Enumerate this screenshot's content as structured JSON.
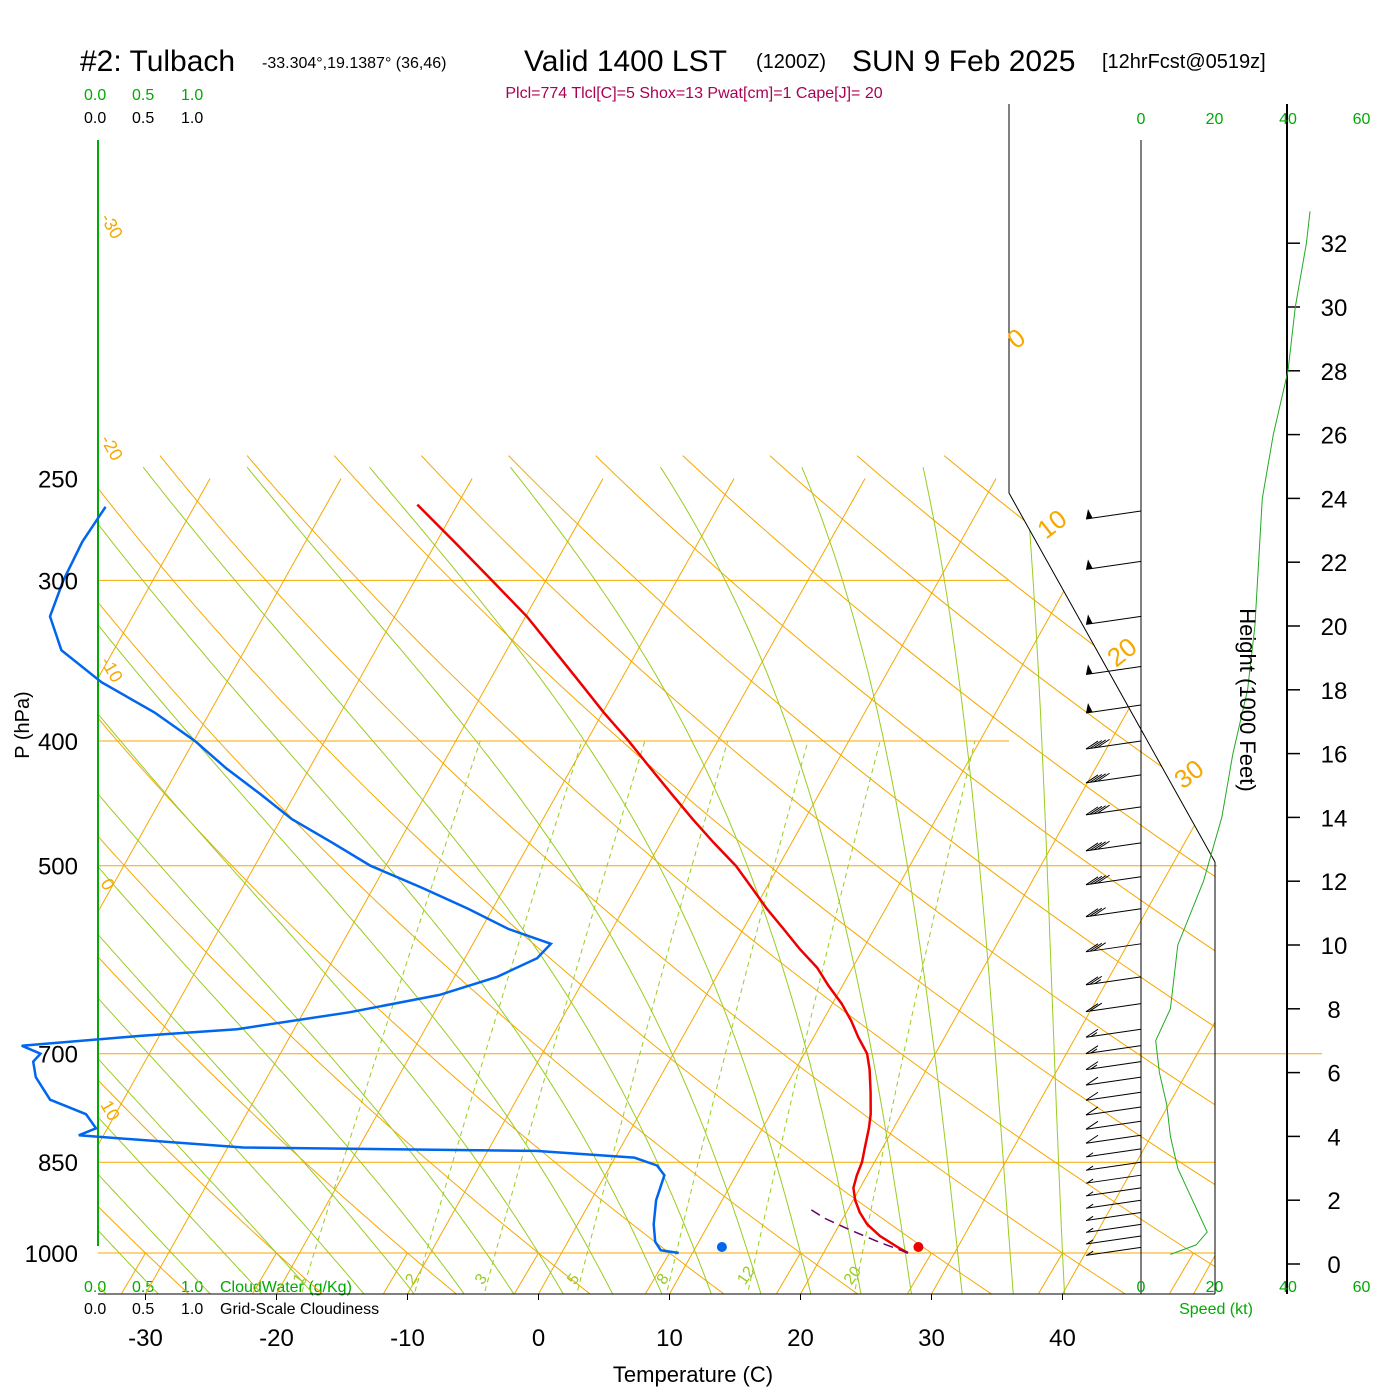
{
  "header": {
    "station": "#2: Tulbach",
    "coords": "-33.304°,19.1387° (36,46)",
    "valid": "Valid 1400 LST",
    "zulu": "(1200Z)",
    "date": "SUN 9 Feb 2025",
    "fcst": "[12hrFcst@0519z]"
  },
  "indices": "Plcl=774 Tlcl[C]=5 Shox=13 Pwat[cm]=1 Cape[J]= 20",
  "colors": {
    "temperature": "#ee0000",
    "dewpoint": "#0066ee",
    "isotherm": "#f5a800",
    "dry_adiabat": "#f5a800",
    "moist_adiabat": "#99cc22",
    "mixing_ratio": "#99cc22",
    "cloud_scale": "#00aa00",
    "indices_text": "#aa0055",
    "parcel": "#660066"
  },
  "chart_data": {
    "type": "line",
    "chart_kind": "skew-T log-p sounding",
    "xlabel": "Temperature (C)",
    "ylabel": "P (hPa)",
    "x_ticks": [
      "-30",
      "-20",
      "-10",
      "0",
      "10",
      "20",
      "30",
      "40"
    ],
    "y_ticks": [
      "250",
      "300",
      "400",
      "500",
      "700",
      "850",
      "1000"
    ],
    "pressure_range_hPa": [
      250,
      1000
    ],
    "temperature_range_C_at_1000": [
      -34,
      36
    ],
    "series": [
      {
        "variable": "temperature",
        "points": [
          [
            1000,
            28.2
          ],
          [
            990,
            27.2
          ],
          [
            970,
            25.3
          ],
          [
            950,
            23.8
          ],
          [
            930,
            22.7
          ],
          [
            910,
            21.8
          ],
          [
            890,
            21.1
          ],
          [
            870,
            20.8
          ],
          [
            850,
            20.6
          ],
          [
            830,
            20.2
          ],
          [
            800,
            19.6
          ],
          [
            780,
            19.1
          ],
          [
            750,
            18.1
          ],
          [
            720,
            17.0
          ],
          [
            700,
            16.1
          ],
          [
            680,
            14.7
          ],
          [
            660,
            13.4
          ],
          [
            640,
            11.9
          ],
          [
            620,
            10.1
          ],
          [
            600,
            8.4
          ],
          [
            580,
            6.2
          ],
          [
            560,
            4.1
          ],
          [
            540,
            1.9
          ],
          [
            520,
            -0.2
          ],
          [
            500,
            -2.4
          ],
          [
            480,
            -5.1
          ],
          [
            460,
            -7.8
          ],
          [
            440,
            -10.5
          ],
          [
            420,
            -13.3
          ],
          [
            400,
            -16.2
          ],
          [
            380,
            -19.4
          ],
          [
            360,
            -22.6
          ],
          [
            340,
            -26.0
          ],
          [
            320,
            -29.6
          ],
          [
            300,
            -33.9
          ],
          [
            280,
            -38.5
          ],
          [
            262,
            -43.0
          ]
        ]
      },
      {
        "variable": "dewpoint",
        "points": [
          [
            1000,
            10.7
          ],
          [
            995,
            9.2
          ],
          [
            980,
            8.4
          ],
          [
            950,
            7.5
          ],
          [
            910,
            6.6
          ],
          [
            870,
            6.1
          ],
          [
            855,
            5.1
          ],
          [
            843,
            3.0
          ],
          [
            833,
            -4.8
          ],
          [
            828,
            -27.3
          ],
          [
            810,
            -40.4
          ],
          [
            800,
            -39.4
          ],
          [
            780,
            -40.8
          ],
          [
            760,
            -44.2
          ],
          [
            730,
            -46.3
          ],
          [
            710,
            -47.2
          ],
          [
            700,
            -47.0
          ],
          [
            690,
            -48.8
          ],
          [
            678,
            -40.2
          ],
          [
            670,
            -33.1
          ],
          [
            650,
            -25.3
          ],
          [
            630,
            -19.2
          ],
          [
            610,
            -15.6
          ],
          [
            590,
            -13.4
          ],
          [
            575,
            -13.0
          ],
          [
            560,
            -16.9
          ],
          [
            540,
            -20.9
          ],
          [
            520,
            -25.4
          ],
          [
            500,
            -30.3
          ],
          [
            480,
            -34.2
          ],
          [
            460,
            -38.4
          ],
          [
            440,
            -41.9
          ],
          [
            420,
            -45.7
          ],
          [
            400,
            -49.3
          ],
          [
            380,
            -53.7
          ],
          [
            360,
            -59.1
          ],
          [
            340,
            -63.6
          ],
          [
            320,
            -66.0
          ],
          [
            300,
            -66.6
          ],
          [
            280,
            -66.9
          ],
          [
            263,
            -66.7
          ]
        ]
      },
      {
        "variable": "parcel",
        "points": [
          [
            1000,
            28.2
          ],
          [
            980,
            25.4
          ],
          [
            960,
            22.8
          ],
          [
            940,
            20.3
          ],
          [
            925,
            18.8
          ]
        ]
      }
    ],
    "surface_markers": [
      {
        "variable": "temperature",
        "pressure": 1000,
        "value": 29.0
      },
      {
        "variable": "dewpoint",
        "pressure": 1000,
        "value": 14.0
      }
    ],
    "isotherm_labels": [
      "10",
      "0",
      "-10",
      "-20",
      "-30"
    ],
    "dry_adiabat_labels": [
      "0",
      "10",
      "20",
      "30"
    ],
    "mixing_ratio_labels": [
      "1",
      "2",
      "3",
      "5",
      "8",
      "12",
      "20"
    ],
    "mixing_ratio_values_gkg": [
      1,
      2,
      3,
      5,
      8,
      12,
      20
    ],
    "cloud_scale_ticks": [
      "0.0",
      "0.5",
      "1.0"
    ],
    "cloudwater_label": "CloudWater (g/Kg)",
    "cloudiness_label": "Grid-Scale Cloudiness",
    "wind": {
      "speed_axis_label": "Speed (kt)",
      "speed_ticks": [
        "0",
        "20",
        "40",
        "60"
      ],
      "height_axis_label": "Height (1000 Feet)",
      "height_ticks": [
        "0",
        "2",
        "4",
        "6",
        "8",
        "10",
        "12",
        "14",
        "16",
        "18",
        "20",
        "22",
        "24",
        "26",
        "28",
        "30",
        "32"
      ],
      "barbs_kt": [
        [
          265,
          50
        ],
        [
          290,
          50
        ],
        [
          320,
          50
        ],
        [
          350,
          50
        ],
        [
          375,
          50
        ],
        [
          400,
          40
        ],
        [
          425,
          40
        ],
        [
          450,
          40
        ],
        [
          480,
          40
        ],
        [
          510,
          40
        ],
        [
          540,
          30
        ],
        [
          575,
          30
        ],
        [
          610,
          25
        ],
        [
          640,
          20
        ],
        [
          670,
          15
        ],
        [
          690,
          15
        ],
        [
          710,
          15
        ],
        [
          730,
          10
        ],
        [
          750,
          10
        ],
        [
          770,
          10
        ],
        [
          790,
          10
        ],
        [
          810,
          10
        ],
        [
          830,
          8
        ],
        [
          850,
          5
        ],
        [
          870,
          5
        ],
        [
          890,
          5
        ],
        [
          910,
          5
        ],
        [
          930,
          5
        ],
        [
          950,
          5
        ],
        [
          970,
          5
        ],
        [
          990,
          5
        ]
      ],
      "speed_profile": [
        [
          0.3,
          8
        ],
        [
          0.6,
          15
        ],
        [
          1.0,
          18
        ],
        [
          2.0,
          14
        ],
        [
          3.0,
          10
        ],
        [
          4.0,
          8
        ],
        [
          5.0,
          7
        ],
        [
          6.0,
          5
        ],
        [
          7.0,
          4
        ],
        [
          8.0,
          8
        ],
        [
          10.0,
          10
        ],
        [
          12.0,
          17
        ],
        [
          14.0,
          22
        ],
        [
          16.0,
          25
        ],
        [
          18.0,
          29
        ],
        [
          20.0,
          31
        ],
        [
          22.0,
          32
        ],
        [
          24.0,
          33
        ],
        [
          26.0,
          36
        ],
        [
          28.0,
          40
        ],
        [
          30.0,
          42
        ],
        [
          32.0,
          45
        ],
        [
          33.0,
          46
        ]
      ]
    }
  }
}
